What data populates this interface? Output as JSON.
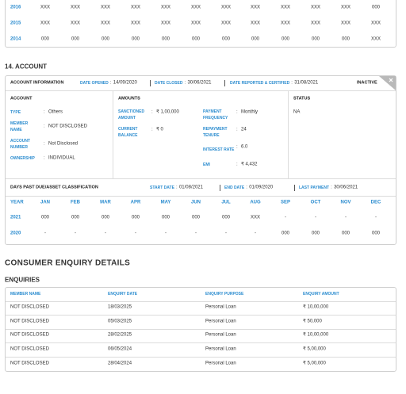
{
  "history_table": {
    "rows": [
      {
        "year": "2016",
        "values": [
          "XXX",
          "XXX",
          "XXX",
          "XXX",
          "XXX",
          "XXX",
          "XXX",
          "XXX",
          "XXX",
          "XXX",
          "XXX",
          "000"
        ]
      },
      {
        "year": "2015",
        "values": [
          "XXX",
          "XXX",
          "XXX",
          "XXX",
          "XXX",
          "XXX",
          "XXX",
          "XXX",
          "XXX",
          "XXX",
          "XXX",
          "XXX"
        ]
      },
      {
        "year": "2014",
        "values": [
          "000",
          "000",
          "000",
          "000",
          "000",
          "000",
          "000",
          "000",
          "000",
          "000",
          "000",
          "XXX"
        ]
      }
    ]
  },
  "account_section": {
    "title": "14. ACCOUNT",
    "header": {
      "title": "ACCOUNT INFORMATION",
      "date_opened": {
        "label": "DATE OPENED",
        "value": "14/09/2020"
      },
      "date_closed": {
        "label": "DATE CLOSED",
        "value": "30/06/2021"
      },
      "date_reported": {
        "label": "DATE REPORTED & CERTIFIED",
        "value": "31/08/2021"
      },
      "status": "INACTIVE"
    },
    "account": {
      "title": "ACCOUNT",
      "fields": [
        {
          "label": "TYPE",
          "value": "Others"
        },
        {
          "label": "MEMBER NAME",
          "value": "NOT DISCLOSED"
        },
        {
          "label": "ACCOUNT NUMBER",
          "value": "Not Disclosed"
        },
        {
          "label": "OWNERSHIP",
          "value": "INDIVIDUAL"
        }
      ]
    },
    "amounts": {
      "title": "AMOUNTS",
      "fields": [
        {
          "label": "SANCTIONED AMOUNT",
          "value": "₹ 1,00,000"
        },
        {
          "label": "CURRENT BALANCE",
          "value": "₹ 0"
        },
        {
          "label": "PAYMENT FREQUENCY",
          "value": "Monthly"
        },
        {
          "label": "REPAYMENT TENURE",
          "value": "24"
        },
        {
          "label": "INTEREST RATE",
          "value": "6.0"
        },
        {
          "label": "EMI",
          "value": "₹ 4,432"
        }
      ]
    },
    "status": {
      "title": "STATUS",
      "value": "NA"
    },
    "dpd": {
      "title": "DAYS PAST DUE/ASSET CLASSIFICATION",
      "start_date": {
        "label": "START DATE",
        "value": "01/08/2021"
      },
      "end_date": {
        "label": "END DATE",
        "value": "01/09/2020"
      },
      "last_payment": {
        "label": "LAST PAYMENT",
        "value": "30/06/2021"
      },
      "header": [
        "YEAR",
        "JAN",
        "FEB",
        "MAR",
        "APR",
        "MAY",
        "JUN",
        "JUL",
        "AUG",
        "SEP",
        "OCT",
        "NOV",
        "DEC"
      ],
      "rows": [
        {
          "year": "2021",
          "values": [
            "000",
            "000",
            "000",
            "000",
            "000",
            "000",
            "000",
            "XXX",
            "-",
            "-",
            "-",
            "-"
          ]
        },
        {
          "year": "2020",
          "values": [
            "-",
            "-",
            "-",
            "-",
            "-",
            "-",
            "-",
            "-",
            "000",
            "000",
            "000",
            "000"
          ]
        }
      ]
    }
  },
  "enquiry_section": {
    "title": "CONSUMER ENQUIRY DETAILS",
    "subtitle": "ENQUIRIES",
    "header": [
      "MEMBER NAME",
      "ENQUIRY DATE",
      "ENQUIRY PURPOSE",
      "ENQUIRY AMOUNT"
    ],
    "rows": [
      [
        "NOT DISCLOSED",
        "18/03/2025",
        "Personal Loan",
        "₹ 10,00,000"
      ],
      [
        "NOT DISCLOSED",
        "05/03/2025",
        "Personal Loan",
        "₹ 50,000"
      ],
      [
        "NOT DISCLOSED",
        "28/02/2025",
        "Personal Loan",
        "₹ 10,00,000"
      ],
      [
        "NOT DISCLOSED",
        "06/05/2024",
        "Personal Loan",
        "₹ 5,00,000"
      ],
      [
        "NOT DISCLOSED",
        "28/04/2024",
        "Personal Loan",
        "₹ 5,00,000"
      ]
    ]
  }
}
